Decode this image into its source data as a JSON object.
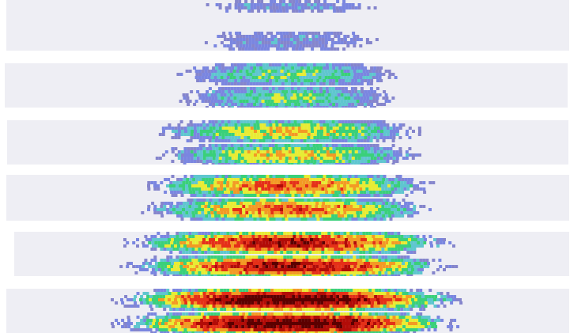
{
  "figure": {
    "strip_count": 6,
    "background_color": "#eeeef4",
    "colormap": [
      "#8585cc",
      "#7a86e0",
      "#5fc6cf",
      "#3ad07a",
      "#e8ec34",
      "#f39a24",
      "#e53018",
      "#b20c08",
      "#5c0000"
    ],
    "strips": [
      {
        "index": 1,
        "relative_intensity": 0.18,
        "relative_spread": 0.3
      },
      {
        "index": 2,
        "relative_intensity": 0.4,
        "relative_spread": 0.37
      },
      {
        "index": 3,
        "relative_intensity": 0.55,
        "relative_spread": 0.45
      },
      {
        "index": 4,
        "relative_intensity": 0.7,
        "relative_spread": 0.5
      },
      {
        "index": 5,
        "relative_intensity": 0.85,
        "relative_spread": 0.56
      },
      {
        "index": 6,
        "relative_intensity": 1.0,
        "relative_spread": 0.6
      }
    ]
  }
}
